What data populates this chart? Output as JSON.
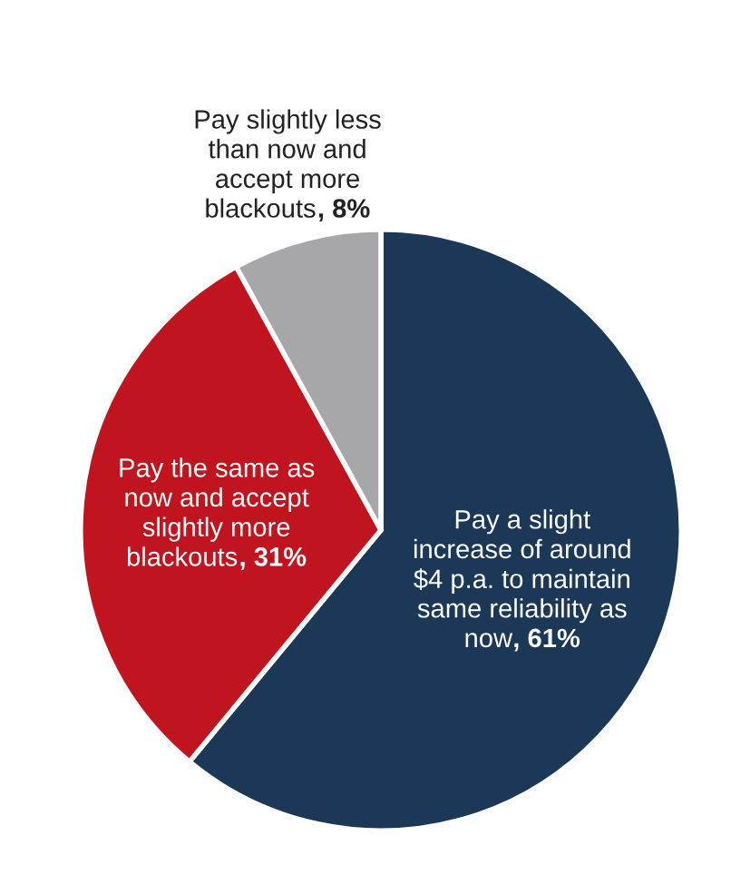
{
  "chart_data": {
    "type": "pie",
    "categories": [
      "Pay a slight\nincrease of around\n$4 p.a. to maintain\nsame reliability as\nnow",
      "Pay the same as\nnow and accept\nslightly more\nblackouts",
      "Pay slightly less\nthan now and\naccept more\nblackouts"
    ],
    "values": [
      61,
      31,
      8
    ],
    "value_labels": [
      ", 61%",
      ", 31%",
      ", 8%"
    ],
    "colors": [
      "#1c3857",
      "#c0141f",
      "#a7a7a9"
    ]
  }
}
